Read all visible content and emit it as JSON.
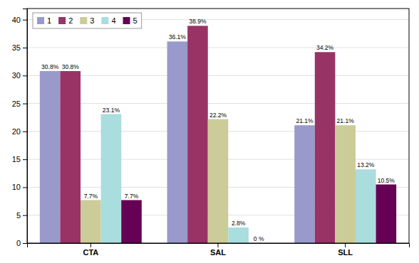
{
  "chart_data": {
    "type": "bar",
    "categories": [
      "CTA",
      "SAL",
      "SLL"
    ],
    "series": [
      {
        "name": "1",
        "color": "#9999cc",
        "values": [
          30.8,
          36.1,
          21.1
        ],
        "value_labels": [
          "30.8%",
          "36.1%",
          "21.1%"
        ]
      },
      {
        "name": "2",
        "color": "#993366",
        "values": [
          30.8,
          38.9,
          34.2
        ],
        "value_labels": [
          "30.8%",
          "38.9%",
          "34.2%"
        ]
      },
      {
        "name": "3",
        "color": "#cccc99",
        "values": [
          7.7,
          22.2,
          21.1
        ],
        "value_labels": [
          "7.7%",
          "22.2%",
          "21.1%"
        ]
      },
      {
        "name": "4",
        "color": "#aadddd",
        "values": [
          23.1,
          2.8,
          13.2
        ],
        "value_labels": [
          "23.1%",
          "2.8%",
          "13.2%"
        ]
      },
      {
        "name": "5",
        "color": "#660055",
        "values": [
          7.7,
          0.0,
          10.5
        ],
        "value_labels": [
          "7.7%",
          "0 %",
          "10.5%"
        ]
      }
    ],
    "ylim": [
      0,
      42
    ],
    "yticks": [
      0,
      5,
      10,
      15,
      20,
      25,
      30,
      35,
      40
    ],
    "grid": true,
    "legend": "upper left",
    "data_labels": true
  }
}
